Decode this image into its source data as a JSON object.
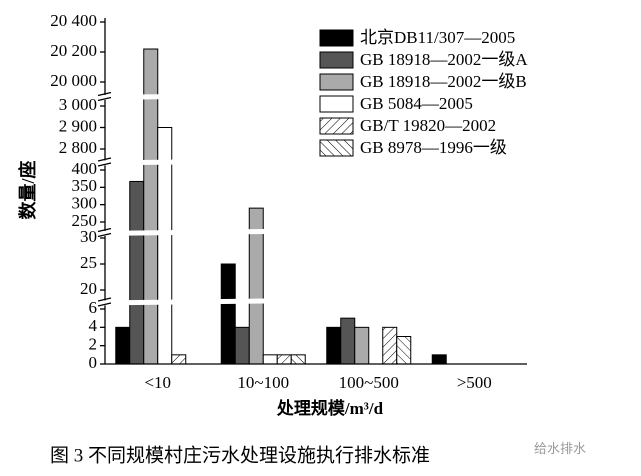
{
  "chart_data": {
    "type": "bar",
    "caption": "图 3   不同规模村庄污水处理设施执行排水标准",
    "watermark": "给水排水",
    "ylabel": "数量/座",
    "xlabel": "处理规模/m³/d",
    "categories": [
      "<10",
      "10~100",
      "100~500",
      ">500"
    ],
    "series": [
      {
        "name": "北京DB11/307—2005",
        "color": "#000000",
        "values": [
          4,
          25,
          4,
          1
        ]
      },
      {
        "name": "GB 18918—2002一级A",
        "color": "#555555",
        "values": [
          367,
          4,
          5,
          0
        ]
      },
      {
        "name": "GB 18918—2002一级B",
        "color": "#aaaaaa",
        "values": [
          20220,
          290,
          4,
          0
        ]
      },
      {
        "name": "GB 5084—2005",
        "color": "#ffffff",
        "values": [
          2900,
          1,
          0,
          0
        ]
      },
      {
        "name": "GB/T 19820—2002",
        "color": "#ffffff",
        "hatch": "forward",
        "values": [
          1,
          1,
          4,
          0
        ]
      },
      {
        "name": "GB 8978—1996一级",
        "color": "#ffffff",
        "hatch": "backward",
        "values": [
          0,
          1,
          3,
          0
        ]
      }
    ],
    "y_segments": [
      {
        "ylim": [
          0,
          6
        ],
        "yticks": [
          0,
          2,
          4,
          6
        ]
      },
      {
        "ylim": [
          20,
          30
        ],
        "yticks": [
          20,
          25,
          30
        ]
      },
      {
        "ylim": [
          250,
          400
        ],
        "yticks": [
          250,
          300,
          350,
          400
        ]
      },
      {
        "ylim": [
          2800,
          3000
        ],
        "yticks": [
          {
            "value": 2800,
            "label": "2 800"
          },
          {
            "value": 2900,
            "label": "2 900"
          },
          {
            "value": 3000,
            "label": "3 000"
          }
        ]
      },
      {
        "ylim": [
          20000,
          20400
        ],
        "yticks": [
          {
            "value": 20000,
            "label": "20 000"
          },
          {
            "value": 20200,
            "label": "20 200"
          },
          {
            "value": 20400,
            "label": "20 400"
          }
        ]
      }
    ],
    "legend": "upper right"
  }
}
